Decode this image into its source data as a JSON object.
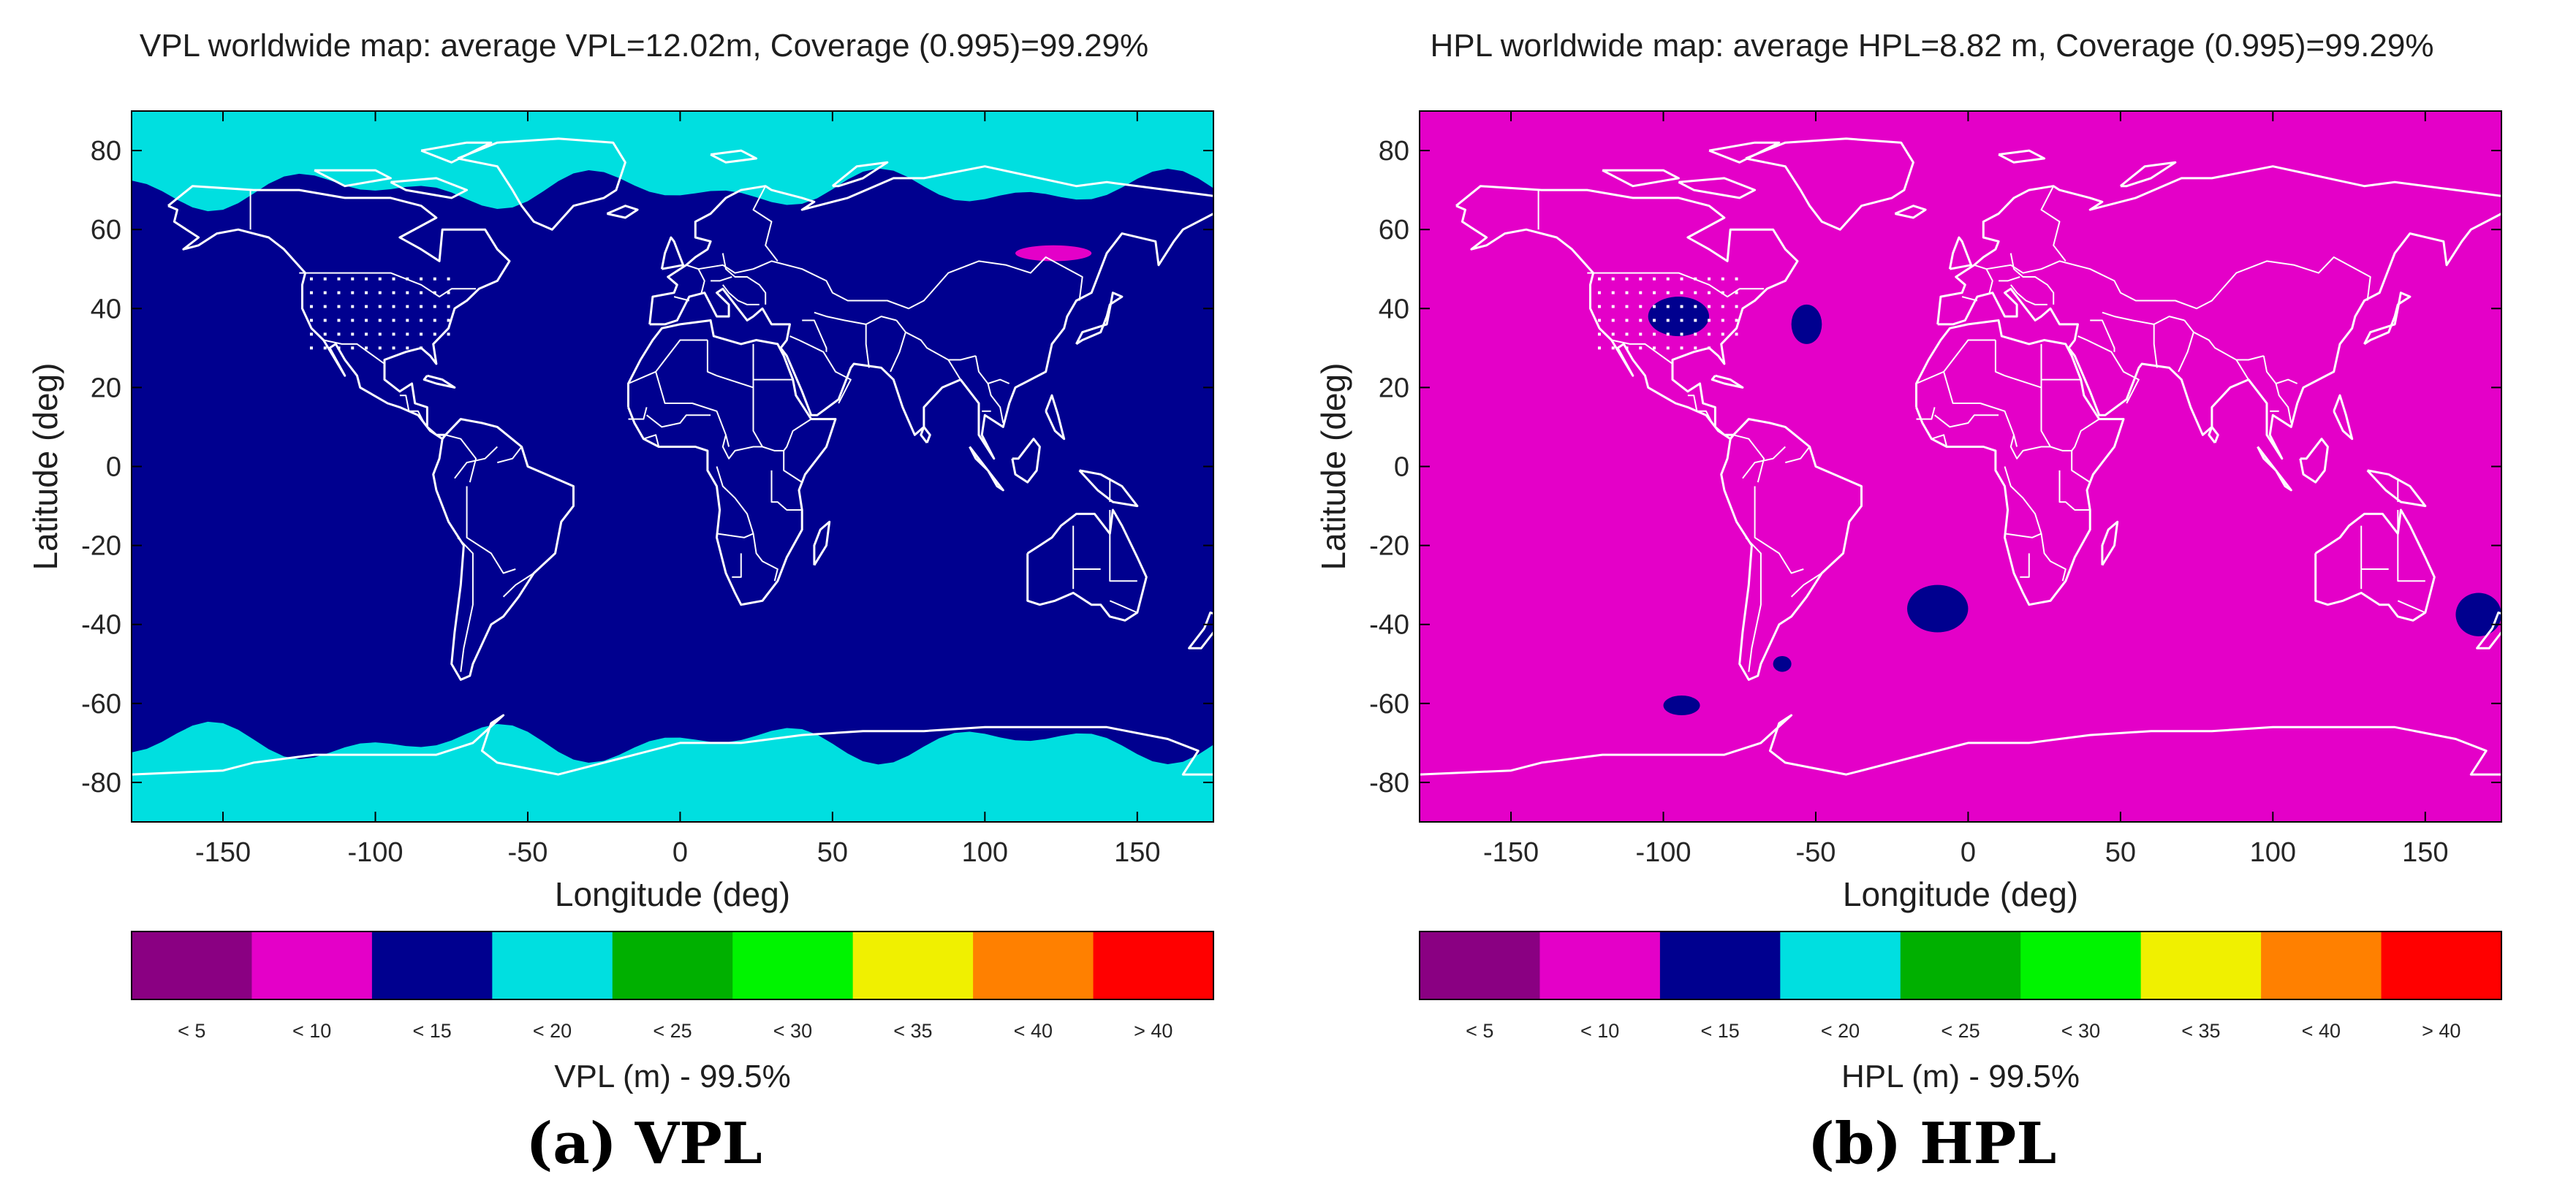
{
  "chart_data": [
    {
      "type": "heatmap",
      "title": "VPL worldwide map: average VPL=12.02m, Coverage (0.995)=99.29%",
      "xlabel": "Longitude (deg)",
      "ylabel": "Latitude (deg)",
      "xticks": [
        "-150",
        "-100",
        "-50",
        "0",
        "50",
        "100",
        "150"
      ],
      "xtick_values": [
        -150,
        -100,
        -50,
        0,
        50,
        100,
        150
      ],
      "yticks": [
        "80",
        "60",
        "40",
        "20",
        "0",
        "-20",
        "-40",
        "-60",
        "-80"
      ],
      "ytick_values": [
        80,
        60,
        40,
        20,
        0,
        -20,
        -40,
        -60,
        -80
      ],
      "xlim": [
        -180,
        175
      ],
      "ylim": [
        -90,
        90
      ],
      "background_class": "< 15",
      "colorbar": {
        "label": "VPL (m) - 99.5%",
        "classes": [
          "< 5",
          "< 10",
          "< 15",
          "< 20",
          "< 25",
          "< 30",
          "< 35",
          "< 40",
          "> 40"
        ],
        "colors": [
          "#8a0082",
          "#e400c8",
          "#00008f",
          "#00dfe0",
          "#00b000",
          "#00f400",
          "#f0f000",
          "#ff8000",
          "#ff0000"
        ]
      },
      "regions": [
        {
          "class": "< 20",
          "lon": [
            -180,
            175
          ],
          "lat": [
            70,
            90
          ]
        },
        {
          "class": "< 20",
          "lon": [
            -180,
            175
          ],
          "lat": [
            -90,
            -70
          ]
        },
        {
          "class": "< 10",
          "lon": [
            110,
            135
          ],
          "lat": [
            52,
            56
          ]
        }
      ],
      "caption_label": "(a)",
      "caption_text": "VPL"
    },
    {
      "type": "heatmap",
      "title": "HPL worldwide map: average HPL=8.82 m, Coverage (0.995)=99.29%",
      "xlabel": "Longitude (deg)",
      "ylabel": "Latitude (deg)",
      "xticks": [
        "-150",
        "-100",
        "-50",
        "0",
        "50",
        "100",
        "150"
      ],
      "xtick_values": [
        -150,
        -100,
        -50,
        0,
        50,
        100,
        150
      ],
      "yticks": [
        "80",
        "60",
        "40",
        "20",
        "0",
        "-20",
        "-40",
        "-60",
        "-80"
      ],
      "ytick_values": [
        80,
        60,
        40,
        20,
        0,
        -20,
        -40,
        -60,
        -80
      ],
      "xlim": [
        -180,
        175
      ],
      "ylim": [
        -90,
        90
      ],
      "background_class": "< 10",
      "colorbar": {
        "label": "HPL (m) - 99.5%",
        "classes": [
          "< 5",
          "< 10",
          "< 15",
          "< 20",
          "< 25",
          "< 30",
          "< 35",
          "< 40",
          "> 40"
        ],
        "colors": [
          "#8a0082",
          "#e400c8",
          "#00008f",
          "#00dfe0",
          "#00b000",
          "#00f400",
          "#f0f000",
          "#ff8000",
          "#ff0000"
        ]
      },
      "regions": [
        {
          "class": "< 15",
          "lon": [
            -105,
            -85
          ],
          "lat": [
            33,
            43
          ]
        },
        {
          "class": "< 15",
          "lon": [
            -58,
            -48
          ],
          "lat": [
            31,
            41
          ]
        },
        {
          "class": "< 15",
          "lon": [
            -20,
            0
          ],
          "lat": [
            -42,
            -30
          ]
        },
        {
          "class": "< 15",
          "lon": [
            160,
            175
          ],
          "lat": [
            -43,
            -32
          ]
        },
        {
          "class": "< 15",
          "lon": [
            -100,
            -88
          ],
          "lat": [
            -63,
            -58
          ]
        },
        {
          "class": "< 15",
          "lon": [
            -64,
            -58
          ],
          "lat": [
            -52,
            -48
          ]
        }
      ],
      "caption_label": "(b)",
      "caption_text": "HPL"
    }
  ]
}
